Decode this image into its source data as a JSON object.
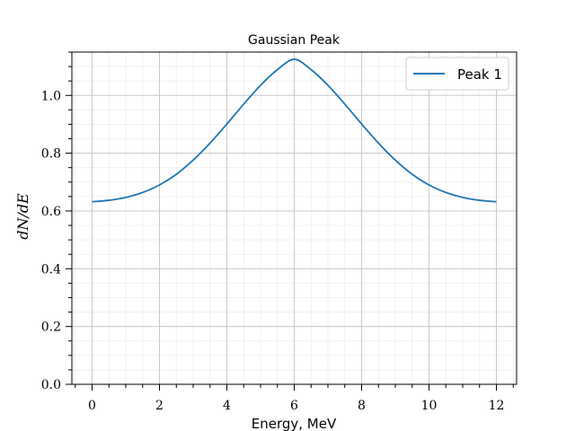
{
  "chart_data": {
    "type": "line",
    "title": "Gaussian Peak",
    "xlabel": "Energy, MeV",
    "ylabel": "dN/dE",
    "xlim": [
      -0.6,
      12.6
    ],
    "ylim": [
      0.0,
      1.15
    ],
    "xticks": [
      0,
      2,
      4,
      6,
      8,
      10,
      12
    ],
    "xtick_labels": [
      "0",
      "2",
      "4",
      "6",
      "8",
      "10",
      "12"
    ],
    "yticks": [
      0.0,
      0.2,
      0.4,
      0.6,
      0.8,
      1.0
    ],
    "ytick_labels": [
      "0.0",
      "0.2",
      "0.4",
      "0.6",
      "0.8",
      "1.0"
    ],
    "grid": true,
    "minor_grid": true,
    "legend_position": "upper right",
    "series": [
      {
        "name": "Peak 1",
        "color": "#1f77b4",
        "x": [
          0,
          0.5,
          1,
          1.5,
          2,
          2.5,
          3,
          3.5,
          4,
          4.5,
          5,
          5.5,
          6,
          6.5,
          7,
          7.5,
          8,
          8.5,
          9,
          9.5,
          10,
          10.5,
          11,
          11.5,
          12
        ],
        "y": [
          0.632,
          0.637,
          0.647,
          0.664,
          0.69,
          0.727,
          0.776,
          0.835,
          0.901,
          0.97,
          1.035,
          1.089,
          1.125,
          1.089,
          1.035,
          0.97,
          0.901,
          0.835,
          0.776,
          0.727,
          0.69,
          0.664,
          0.647,
          0.637,
          0.632
        ]
      }
    ]
  }
}
